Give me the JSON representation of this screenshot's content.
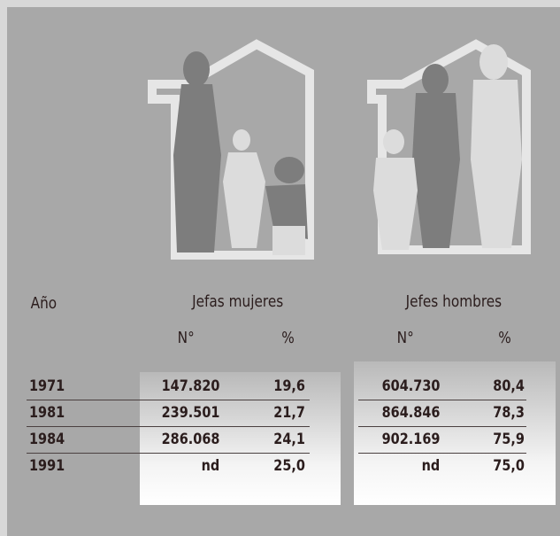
{
  "table": {
    "year_header": "Año",
    "groups": [
      "Jefas mujeres",
      "Jefes hombres"
    ],
    "subheaders": [
      "N°",
      "%",
      "N°",
      "%"
    ],
    "rows": [
      [
        "1971",
        "147.820",
        "19,6",
        "604.730",
        "80,4"
      ],
      [
        "1981",
        "239.501",
        "21,7",
        "864.846",
        "78,3"
      ],
      [
        "1984",
        "286.068",
        "24,1",
        "902.169",
        "75,9"
      ],
      [
        "1991",
        "nd",
        "25,0",
        "nd",
        "75,0"
      ]
    ]
  }
}
